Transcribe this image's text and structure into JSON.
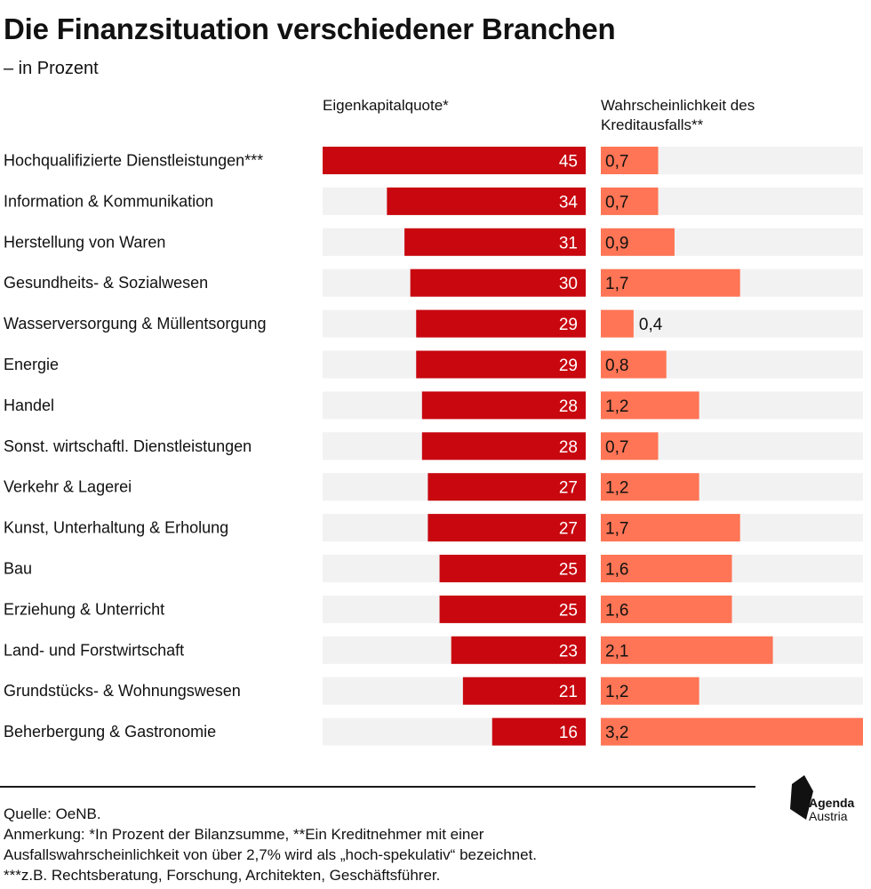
{
  "title": "Die Finanzsituation verschiedener Branchen",
  "subtitle": "– in Prozent",
  "colors": {
    "bg_track": "#f2f2f2",
    "equity_bar": "#c8070f",
    "default_bar": "#ff7555",
    "text_dark": "#111111",
    "text_light": "#ffffff"
  },
  "chart_data": {
    "type": "bar",
    "categories": [
      "Hochqualifizierte Dienstleistungen***",
      "Information & Kommunikation",
      "Herstellung von Waren",
      "Gesundheits- & Sozialwesen",
      "Wasserversorgung & Müllentsorgung",
      "Energie",
      "Handel",
      "Sonst. wirtschaftl. Dienstleistungen",
      "Verkehr & Lagerei",
      "Kunst, Unterhaltung & Erholung",
      "Bau",
      "Erziehung & Unterricht",
      "Land- und Forstwirtschaft",
      "Grundstücks- & Wohnungswesen",
      "Beherbergung & Gastronomie"
    ],
    "series": [
      {
        "name": "Eigenkapitalquote*",
        "values": [
          45,
          34,
          31,
          30,
          29,
          29,
          28,
          28,
          27,
          27,
          25,
          25,
          23,
          21,
          16
        ],
        "labels": [
          "45",
          "34",
          "31",
          "30",
          "29",
          "29",
          "28",
          "28",
          "27",
          "27",
          "25",
          "25",
          "23",
          "21",
          "16"
        ],
        "xlim": [
          0,
          45
        ],
        "direction": "right-to-left"
      },
      {
        "name": "Wahrscheinlichkeit des Kreditausfalls**",
        "values": [
          0.7,
          0.7,
          0.9,
          1.7,
          0.4,
          0.8,
          1.2,
          0.7,
          1.2,
          1.7,
          1.6,
          1.6,
          2.1,
          1.2,
          3.2
        ],
        "labels": [
          "0,7",
          "0,7",
          "0,9",
          "1,7",
          "0,4",
          "0,8",
          "1,2",
          "0,7",
          "1,2",
          "1,7",
          "1,6",
          "1,6",
          "2,1",
          "1,2",
          "3,2"
        ],
        "xlim": [
          0,
          3.2
        ],
        "direction": "left-to-right"
      }
    ],
    "grid": false,
    "legend": "none"
  },
  "footer": {
    "source": "Quelle: OeNB.",
    "note_line1": "Anmerkung: *In Prozent der Bilanzsumme, **Ein Kreditnehmer mit einer",
    "note_line2": "Ausfallswahrscheinlichkeit von über 2,7% wird als „hoch-spekulativ“ bezeichnet.",
    "note_line3": "***z.B. Rechtsberatung, Forschung, Architekten, Geschäftsführer."
  },
  "logo": {
    "line1": "Agenda",
    "line2": "Austria",
    "icon": "agenda-austria-logo-icon"
  }
}
